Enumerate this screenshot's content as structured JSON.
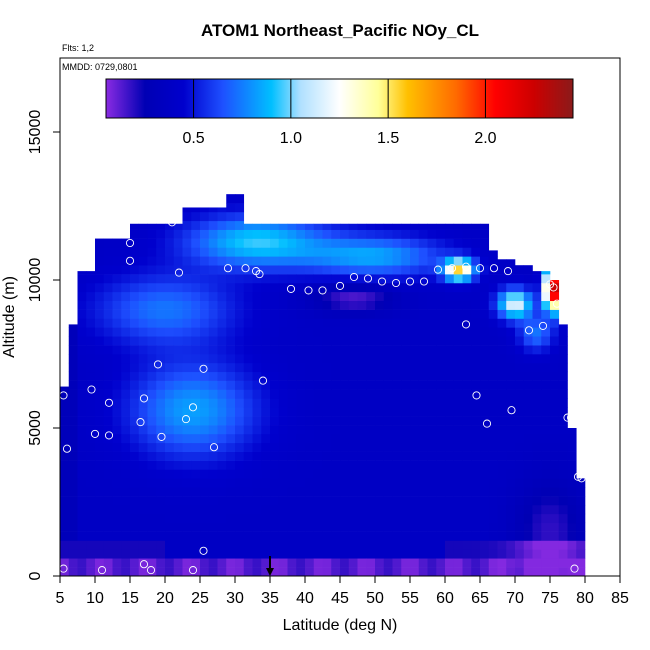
{
  "chart_data": {
    "type": "heatmap",
    "title": "ATOM1 Northeast_Pacific NOy_CL",
    "flights_label": "Flts: 1,2",
    "dates_label": "MMDD: 0729,0801",
    "xlabel": "Latitude (deg N)",
    "ylabel": "Altitude (m)",
    "xlim": [
      5,
      85
    ],
    "ylim": [
      0,
      17500
    ],
    "x_ticks": [
      5,
      10,
      15,
      20,
      25,
      30,
      35,
      40,
      45,
      50,
      55,
      60,
      65,
      70,
      75,
      80,
      85
    ],
    "y_ticks": [
      0,
      5000,
      10000,
      15000
    ],
    "colorbar": {
      "range": [
        0.05,
        2.45
      ],
      "ticks": [
        0.5,
        1.0,
        1.5,
        2.0
      ],
      "tick_labels": [
        "0.5",
        "1.0",
        "1.5",
        "2.0"
      ],
      "stops": [
        {
          "v": 0.05,
          "color": "#8a2be2"
        },
        {
          "v": 0.25,
          "color": "#0000b4"
        },
        {
          "v": 0.45,
          "color": "#0000cd"
        },
        {
          "v": 0.65,
          "color": "#1e50ff"
        },
        {
          "v": 0.9,
          "color": "#00bfff"
        },
        {
          "v": 1.05,
          "color": "#b0e0ff"
        },
        {
          "v": 1.25,
          "color": "#ffffff"
        },
        {
          "v": 1.45,
          "color": "#ffff99"
        },
        {
          "v": 1.6,
          "color": "#ffc000"
        },
        {
          "v": 1.85,
          "color": "#ff6a00"
        },
        {
          "v": 2.05,
          "color": "#ff0000"
        },
        {
          "v": 2.25,
          "color": "#cc0000"
        },
        {
          "v": 2.45,
          "color": "#8b1a1a"
        }
      ]
    },
    "arrow_latitude": 35,
    "grid": false,
    "observation_points": [
      [
        5.5,
        250
      ],
      [
        11,
        200
      ],
      [
        17,
        400
      ],
      [
        18,
        200
      ],
      [
        24,
        200
      ],
      [
        25.5,
        850
      ],
      [
        6,
        4300
      ],
      [
        10,
        4800
      ],
      [
        12,
        4750
      ],
      [
        19.5,
        4700
      ],
      [
        27,
        4350
      ],
      [
        66,
        5150
      ],
      [
        69.5,
        5600
      ],
      [
        77.5,
        5350
      ],
      [
        78,
        5350
      ],
      [
        79,
        3350
      ],
      [
        79.5,
        3300
      ],
      [
        5.5,
        6100
      ],
      [
        9.5,
        6300
      ],
      [
        12,
        5850
      ],
      [
        16.5,
        5200
      ],
      [
        17,
        6000
      ],
      [
        23,
        5300
      ],
      [
        24,
        5700
      ],
      [
        25.5,
        7000
      ],
      [
        19,
        7150
      ],
      [
        34,
        6600
      ],
      [
        64.5,
        6100
      ],
      [
        7.5,
        10500
      ],
      [
        8,
        11250
      ],
      [
        15,
        10650
      ],
      [
        15,
        11250
      ],
      [
        21,
        11950
      ],
      [
        22,
        10250
      ],
      [
        29,
        10400
      ],
      [
        31.5,
        10400
      ],
      [
        33,
        10300
      ],
      [
        33.5,
        10200
      ],
      [
        38,
        9700
      ],
      [
        40.5,
        9650
      ],
      [
        42.5,
        9650
      ],
      [
        45,
        9800
      ],
      [
        47,
        10100
      ],
      [
        49,
        10050
      ],
      [
        51,
        9950
      ],
      [
        53,
        9900
      ],
      [
        55,
        9950
      ],
      [
        57,
        9950
      ],
      [
        59,
        10350
      ],
      [
        61,
        10400
      ],
      [
        63,
        10450
      ],
      [
        65,
        10400
      ],
      [
        67,
        10400
      ],
      [
        67,
        11300
      ],
      [
        69,
        10300
      ],
      [
        72,
        8300
      ],
      [
        74,
        8450
      ],
      [
        75,
        9850
      ],
      [
        75.5,
        9750
      ],
      [
        76,
        9200
      ],
      [
        77,
        9800
      ],
      [
        78.5,
        250
      ],
      [
        63,
        8500
      ]
    ]
  }
}
